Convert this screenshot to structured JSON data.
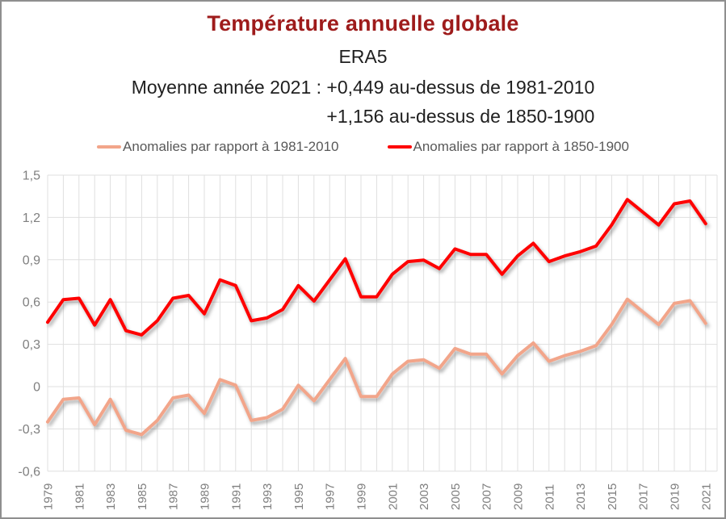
{
  "header": {
    "title": "Température annuelle globale",
    "title_color": "#9E1B1B",
    "subtitle": "ERA5",
    "stat_line_1": "Moyenne année 2021 : +0,449 au-dessus de 1981-2010",
    "stat_line_2": "+1,156 au-dessus de 1850-1900"
  },
  "legend": {
    "items": [
      {
        "label": "Anomalies par rapport à 1981-2010",
        "color": "#F2A58A"
      },
      {
        "label": "Anomalies par rapport à 1850-1900",
        "color": "#FE0000"
      }
    ]
  },
  "chart_data": {
    "type": "line",
    "title": "Température annuelle globale",
    "subtitle": "ERA5",
    "x": [
      1979,
      1980,
      1981,
      1982,
      1983,
      1984,
      1985,
      1986,
      1987,
      1988,
      1989,
      1990,
      1991,
      1992,
      1993,
      1994,
      1995,
      1996,
      1997,
      1998,
      1999,
      2000,
      2001,
      2002,
      2003,
      2004,
      2005,
      2006,
      2007,
      2008,
      2009,
      2010,
      2011,
      2012,
      2013,
      2014,
      2015,
      2016,
      2017,
      2018,
      2019,
      2020,
      2021
    ],
    "series": [
      {
        "name": "Anomalies par rapport à 1981-2010",
        "color": "#F2A58A",
        "values": [
          -0.25,
          -0.09,
          -0.08,
          -0.27,
          -0.09,
          -0.31,
          -0.34,
          -0.24,
          -0.08,
          -0.06,
          -0.19,
          0.05,
          0.01,
          -0.24,
          -0.22,
          -0.16,
          0.01,
          -0.1,
          0.05,
          0.2,
          -0.07,
          -0.07,
          0.09,
          0.18,
          0.19,
          0.13,
          0.27,
          0.23,
          0.23,
          0.09,
          0.22,
          0.31,
          0.18,
          0.22,
          0.25,
          0.29,
          0.44,
          0.62,
          0.53,
          0.44,
          0.59,
          0.61,
          0.449
        ]
      },
      {
        "name": "Anomalies par rapport à 1850-1900",
        "color": "#FE0000",
        "values": [
          0.457,
          0.617,
          0.627,
          0.437,
          0.617,
          0.397,
          0.367,
          0.467,
          0.627,
          0.647,
          0.517,
          0.757,
          0.717,
          0.467,
          0.487,
          0.547,
          0.717,
          0.607,
          0.757,
          0.907,
          0.637,
          0.637,
          0.797,
          0.887,
          0.897,
          0.837,
          0.977,
          0.937,
          0.937,
          0.797,
          0.927,
          1.017,
          0.887,
          0.927,
          0.957,
          0.997,
          1.147,
          1.327,
          1.237,
          1.147,
          1.297,
          1.317,
          1.156
        ]
      }
    ],
    "ylim": [
      -0.6,
      1.5
    ],
    "ytick_step": 0.3,
    "ytick_labels": [
      "-0,6",
      "-0,3",
      "0",
      "0,3",
      "0,6",
      "0,9",
      "1,2",
      "1,5"
    ],
    "xtick_labels": [
      "1979",
      "1981",
      "1983",
      "1985",
      "1987",
      "1989",
      "1991",
      "1993",
      "1995",
      "1997",
      "1999",
      "2001",
      "2003",
      "2005",
      "2007",
      "2009",
      "2011",
      "2013",
      "2015",
      "2017",
      "2019",
      "2021"
    ],
    "grid": true,
    "legend_position": "top",
    "grid_color": "#DFDFDF",
    "axis_label_color": "#7F7F7F"
  }
}
